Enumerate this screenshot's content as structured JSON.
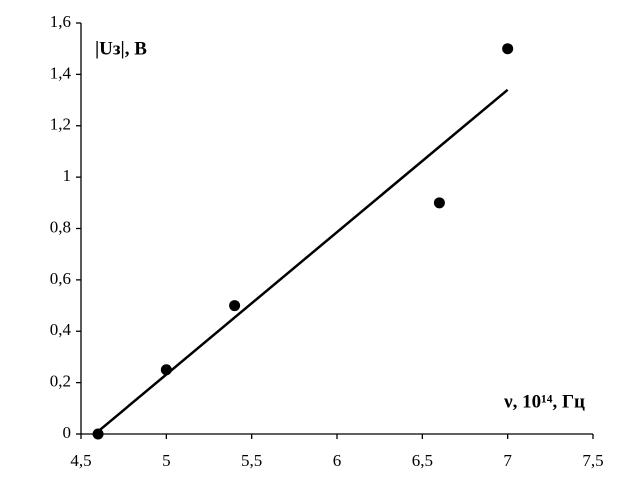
{
  "chart_data": {
    "type": "scatter",
    "y_label": "|Uз|, В",
    "x_label": "ν, 10¹⁴, Гц",
    "x": [
      4.6,
      5.0,
      5.4,
      6.6,
      7.0
    ],
    "values": [
      0,
      0.25,
      0.5,
      0.9,
      1.5
    ],
    "color": "#000000",
    "trendline": {
      "x": [
        4.6,
        7.0
      ],
      "y": [
        0.01,
        1.34
      ]
    },
    "xlim": [
      4.5,
      7.5
    ],
    "xticks": [
      {
        "value": 4.5,
        "label": "4,5"
      },
      5,
      {
        "value": 5.5,
        "label": "5,5"
      },
      6,
      {
        "value": 6.5,
        "label": "6,5"
      },
      7,
      {
        "value": 7.5,
        "label": "7,5"
      }
    ],
    "ylim": [
      0,
      1.6
    ],
    "yticks": [
      0,
      {
        "value": 0.2,
        "label": "0,2"
      },
      {
        "value": 0.4,
        "label": "0,4"
      },
      {
        "value": 0.6,
        "label": "0,6"
      },
      {
        "value": 0.8,
        "label": "0,8"
      },
      1,
      {
        "value": 1.2,
        "label": "1,2"
      },
      {
        "value": 1.4,
        "label": "1,4"
      },
      {
        "value": 1.6,
        "label": "1,6"
      }
    ],
    "grid": false
  }
}
